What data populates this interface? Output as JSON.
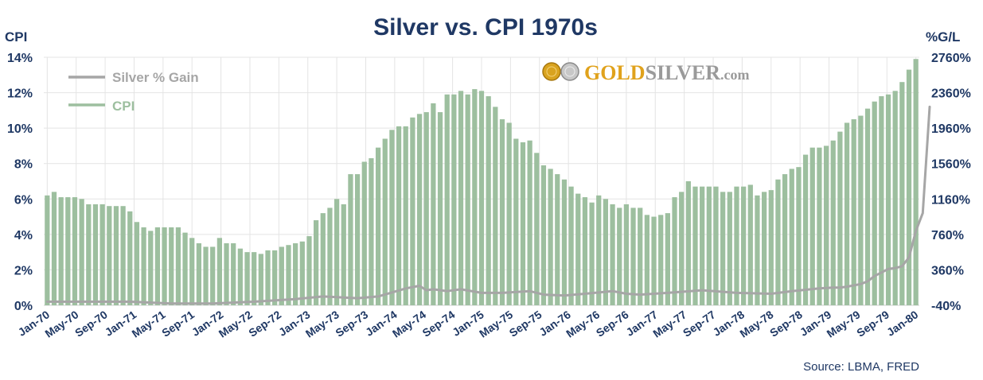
{
  "colors": {
    "bar": "#9dbf9f",
    "line": "#a6a6a6",
    "text": "#1f3864",
    "grid": "#e4e4e4",
    "logo_gold": "#e0a21c",
    "logo_silver": "#9a9a9a"
  },
  "logo": {
    "gold": "GOLD",
    "silver": "SILVER",
    "suffix": ".com"
  },
  "chart_data": {
    "type": "bar",
    "title": "Silver vs. CPI 1970s",
    "ylabel": "CPI",
    "y2label": "%G/L",
    "source": "Source: LBMA, FRED",
    "ylim": [
      0,
      14
    ],
    "y2lim": [
      -40,
      2760
    ],
    "yticks": [
      "0%",
      "2%",
      "4%",
      "6%",
      "8%",
      "10%",
      "12%",
      "14%"
    ],
    "y2ticks": [
      "-40%",
      "360%",
      "760%",
      "1160%",
      "1560%",
      "1960%",
      "2360%",
      "2760%"
    ],
    "xtick_labels": [
      "Jan-70",
      "May-70",
      "Sep-70",
      "Jan-71",
      "May-71",
      "Sep-71",
      "Jan-72",
      "May-72",
      "Sep-72",
      "Jan-73",
      "May-73",
      "Sep-73",
      "Jan-74",
      "May-74",
      "Sep-74",
      "Jan-75",
      "May-75",
      "Sep-75",
      "Jan-76",
      "May-76",
      "Sep-76",
      "Jan-77",
      "May-77",
      "Sep-77",
      "Jan-78",
      "May-78",
      "Sep-78",
      "Jan-79",
      "May-79",
      "Sep-79",
      "Jan-80"
    ],
    "legend": [
      "Silver % Gain",
      "CPI"
    ],
    "series": [
      {
        "name": "CPI",
        "type": "bar",
        "axis": "left",
        "values": [
          6.2,
          6.4,
          6.1,
          6.1,
          6.1,
          6.0,
          5.7,
          5.7,
          5.7,
          5.6,
          5.6,
          5.6,
          5.3,
          4.7,
          4.4,
          4.2,
          4.4,
          4.4,
          4.4,
          4.4,
          4.1,
          3.8,
          3.5,
          3.3,
          3.3,
          3.8,
          3.5,
          3.5,
          3.2,
          3.0,
          3.0,
          2.9,
          3.1,
          3.1,
          3.3,
          3.4,
          3.5,
          3.6,
          3.9,
          4.8,
          5.2,
          5.5,
          6.0,
          5.7,
          7.4,
          7.4,
          8.1,
          8.3,
          8.9,
          9.4,
          9.9,
          10.1,
          10.1,
          10.6,
          10.8,
          10.9,
          11.4,
          10.9,
          11.9,
          11.9,
          12.1,
          11.9,
          12.2,
          12.1,
          11.8,
          11.2,
          10.5,
          10.3,
          9.4,
          9.2,
          9.3,
          8.6,
          7.9,
          7.7,
          7.4,
          7.1,
          6.7,
          6.3,
          6.1,
          5.8,
          6.2,
          6.0,
          5.7,
          5.5,
          5.7,
          5.5,
          5.5,
          5.1,
          5.0,
          5.1,
          5.2,
          6.1,
          6.4,
          7.0,
          6.7,
          6.7,
          6.7,
          6.7,
          6.4,
          6.4,
          6.7,
          6.7,
          6.8,
          6.2,
          6.4,
          6.5,
          7.1,
          7.4,
          7.7,
          7.8,
          8.5,
          8.9,
          8.9,
          9.0,
          9.3,
          9.8,
          10.3,
          10.5,
          10.7,
          11.1,
          11.5,
          11.8,
          11.9,
          12.1,
          12.6,
          13.3,
          13.9
        ]
      },
      {
        "name": "Silver % Gain",
        "type": "line",
        "axis": "right",
        "x": [
          0,
          6,
          12,
          18,
          24,
          30,
          36,
          40,
          45,
          48,
          52,
          54,
          55,
          56,
          58,
          60,
          63,
          66,
          70,
          72,
          75,
          78,
          82,
          84,
          86,
          88,
          90,
          95,
          100,
          105,
          108,
          112,
          114,
          115,
          116,
          118,
          119,
          120,
          121,
          122,
          123,
          124,
          125,
          126,
          127,
          128
        ],
        "values": [
          0,
          0,
          0,
          -20,
          -20,
          0,
          30,
          60,
          40,
          60,
          150,
          180,
          130,
          140,
          120,
          140,
          100,
          100,
          120,
          80,
          70,
          90,
          120,
          90,
          80,
          90,
          100,
          130,
          100,
          90,
          120,
          150,
          160,
          160,
          170,
          200,
          230,
          290,
          330,
          370,
          380,
          400,
          500,
          800,
          1000,
          2200
        ]
      }
    ]
  }
}
